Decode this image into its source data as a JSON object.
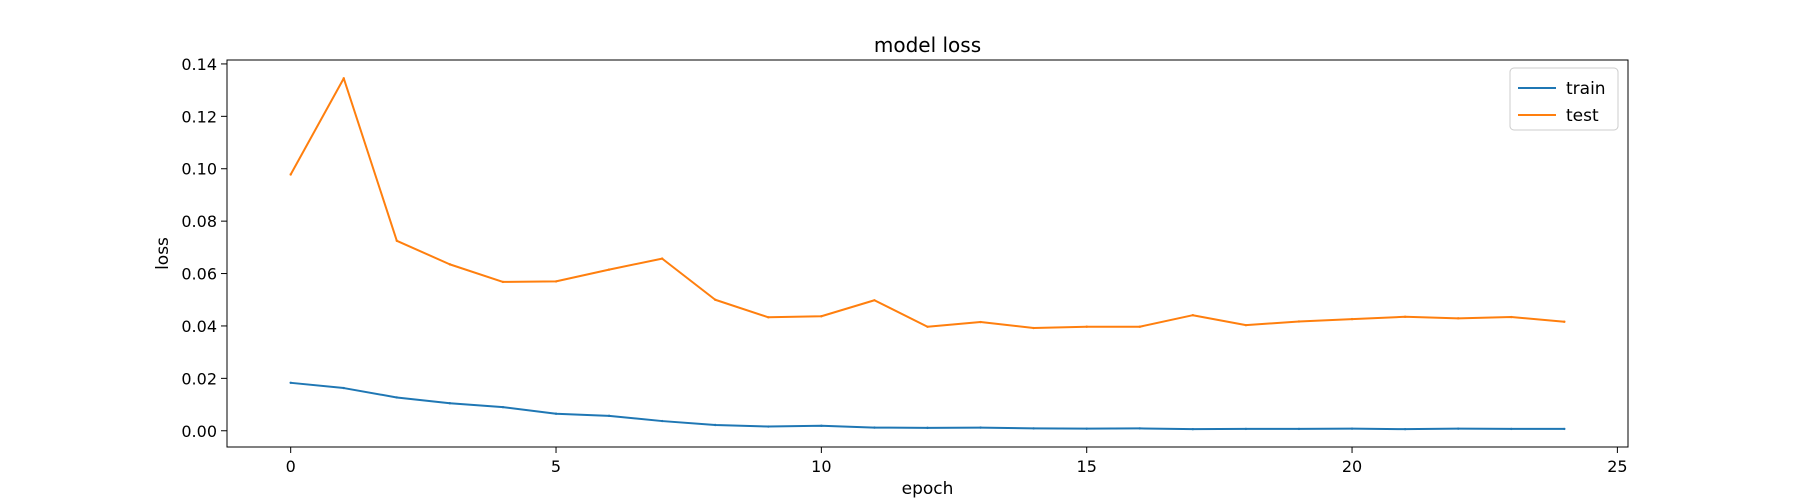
{
  "chart_data": {
    "type": "line",
    "title": "model loss",
    "xlabel": "epoch",
    "ylabel": "loss",
    "xlim": [
      -1.2,
      25.2
    ],
    "ylim": [
      -0.0062,
      0.1415
    ],
    "xticks": [
      0,
      5,
      10,
      15,
      20,
      25
    ],
    "xtick_labels": [
      "0",
      "5",
      "10",
      "15",
      "20",
      "25"
    ],
    "yticks": [
      0.0,
      0.02,
      0.04,
      0.06,
      0.08,
      0.1,
      0.12,
      0.14
    ],
    "ytick_labels": [
      "0.00",
      "0.02",
      "0.04",
      "0.06",
      "0.08",
      "0.10",
      "0.12",
      "0.14"
    ],
    "grid": false,
    "legend_position": "top-right",
    "x": [
      0,
      1,
      2,
      3,
      4,
      5,
      6,
      7,
      8,
      9,
      10,
      11,
      12,
      13,
      14,
      15,
      16,
      17,
      18,
      19,
      20,
      21,
      22,
      23,
      24
    ],
    "series": [
      {
        "name": "train",
        "color": "#1f77b4",
        "values": [
          0.0183,
          0.0163,
          0.0127,
          0.0105,
          0.009,
          0.0065,
          0.0057,
          0.0037,
          0.0022,
          0.0016,
          0.0019,
          0.0012,
          0.0011,
          0.0012,
          0.0009,
          0.0008,
          0.0009,
          0.0006,
          0.0007,
          0.0007,
          0.0008,
          0.0006,
          0.0008,
          0.0007,
          0.0007
        ]
      },
      {
        "name": "test",
        "color": "#ff7f0e",
        "values": [
          0.0978,
          0.1345,
          0.0725,
          0.0635,
          0.0568,
          0.057,
          0.0615,
          0.0657,
          0.05,
          0.0433,
          0.0437,
          0.0498,
          0.0397,
          0.0415,
          0.0392,
          0.0397,
          0.0397,
          0.0441,
          0.0403,
          0.0417,
          0.0426,
          0.0435,
          0.0429,
          0.0434,
          0.0416
        ]
      }
    ]
  }
}
